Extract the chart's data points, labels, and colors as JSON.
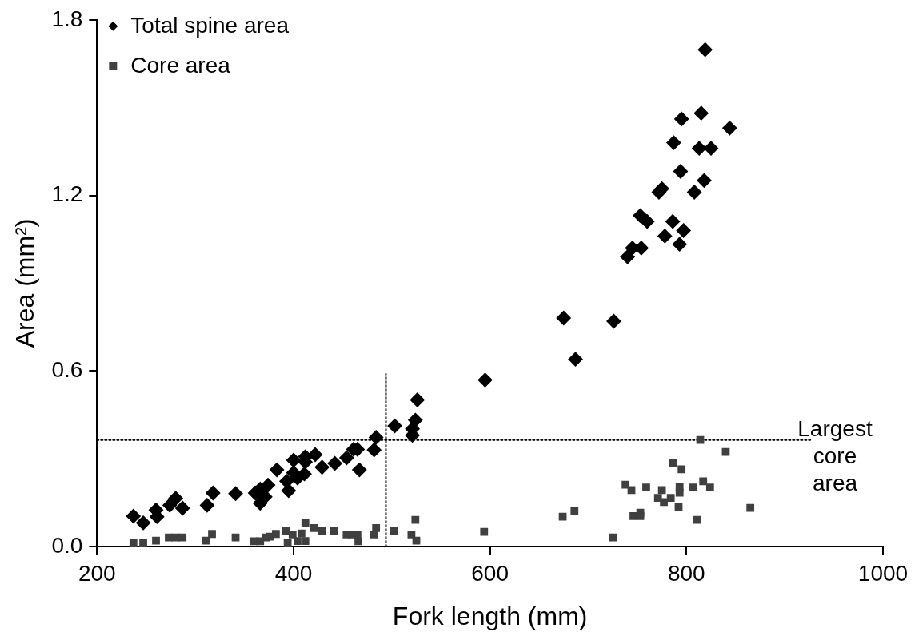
{
  "chart_data": {
    "type": "scatter",
    "xlabel": "Fork length (mm)",
    "ylabel": "Area (mm²)",
    "xlim": [
      200,
      1000
    ],
    "xticks": [
      200,
      400,
      600,
      800,
      1000
    ],
    "ylim": [
      0,
      1.8
    ],
    "yticks": [
      {
        "value": 0,
        "label": "0.0"
      },
      {
        "value": 0.6,
        "label": "0.6"
      },
      {
        "value": 1.2,
        "label": "1.2"
      },
      {
        "value": 1.8,
        "label": "1.8"
      }
    ],
    "grid": false,
    "legend": "top left",
    "series": [
      {
        "name": "Total spine area",
        "color": "#000000",
        "marker": "diamond",
        "x": [
          237,
          247,
          260,
          261,
          274,
          280,
          287,
          312,
          318,
          341,
          361,
          366,
          374,
          371,
          366,
          383,
          393,
          395,
          400,
          400,
          404,
          411,
          412,
          412,
          422,
          429,
          442,
          454,
          461,
          465,
          467,
          482,
          484,
          503,
          521,
          521,
          524,
          526,
          595,
          675,
          687,
          726,
          740,
          745,
          754,
          760,
          753,
          778,
          786,
          793,
          797,
          772,
          775,
          808,
          818,
          794,
          787,
          813,
          825,
          795,
          815,
          819,
          844
        ],
        "values": [
          0.104,
          0.081,
          0.125,
          0.102,
          0.141,
          0.165,
          0.131,
          0.141,
          0.183,
          0.181,
          0.183,
          0.196,
          0.21,
          0.17,
          0.148,
          0.262,
          0.223,
          0.191,
          0.295,
          0.252,
          0.234,
          0.248,
          0.307,
          0.289,
          0.314,
          0.271,
          0.284,
          0.303,
          0.332,
          0.332,
          0.262,
          0.33,
          0.373,
          0.412,
          0.402,
          0.38,
          0.432,
          0.501,
          0.569,
          0.781,
          0.64,
          0.77,
          0.99,
          1.02,
          1.02,
          1.111,
          1.131,
          1.061,
          1.111,
          1.033,
          1.08,
          1.211,
          1.223,
          1.211,
          1.251,
          1.282,
          1.38,
          1.361,
          1.361,
          1.461,
          1.481,
          1.698,
          1.43
        ]
      },
      {
        "name": "Core area",
        "color": "#404040",
        "marker": "square",
        "x": [
          237,
          247,
          260,
          273,
          280,
          287,
          311,
          317,
          341,
          360,
          366,
          372,
          376,
          382,
          392,
          399,
          394,
          404,
          412,
          408,
          412,
          421,
          429,
          441,
          454,
          460,
          465,
          466,
          482,
          484,
          502,
          520,
          525,
          524,
          594,
          674,
          686,
          725,
          738,
          744,
          759,
          746,
          753,
          753,
          775,
          771,
          777,
          784,
          792,
          793,
          793,
          786,
          795,
          807,
          811,
          817,
          824,
          814,
          840,
          865
        ],
        "values": [
          0.013,
          0.013,
          0.02,
          0.031,
          0.031,
          0.031,
          0.02,
          0.043,
          0.031,
          0.018,
          0.018,
          0.031,
          0.034,
          0.043,
          0.052,
          0.041,
          0.011,
          0.019,
          0.019,
          0.045,
          0.081,
          0.063,
          0.052,
          0.052,
          0.041,
          0.041,
          0.041,
          0.018,
          0.041,
          0.063,
          0.052,
          0.041,
          0.02,
          0.091,
          0.05,
          0.102,
          0.122,
          0.031,
          0.211,
          0.193,
          0.202,
          0.104,
          0.104,
          0.116,
          0.193,
          0.166,
          0.152,
          0.166,
          0.134,
          0.184,
          0.204,
          0.284,
          0.264,
          0.202,
          0.091,
          0.223,
          0.202,
          0.364,
          0.323,
          0.132
        ]
      },
      {
        "type": "line",
        "color": "#000000",
        "line_style": "dotted",
        "marker": "none",
        "x": [
          200,
          926
        ],
        "values": [
          0.364,
          0.364
        ]
      },
      {
        "type": "line",
        "color": "#000000",
        "line_style": "dotted",
        "marker": "none",
        "x": [
          494,
          494
        ],
        "values": [
          0,
          0.59
        ]
      }
    ],
    "annotations": [
      "Largest core area"
    ]
  }
}
